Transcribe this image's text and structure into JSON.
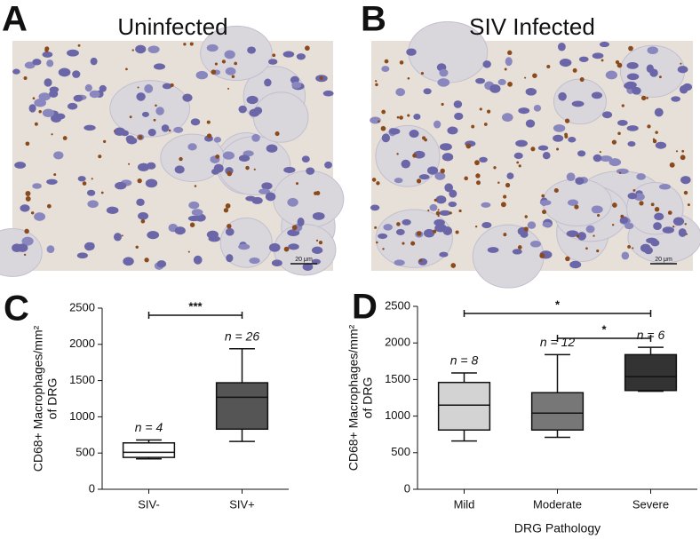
{
  "images": [
    {
      "letter": "A",
      "title": "Uninfected",
      "scale_bar": "20 μm"
    },
    {
      "letter": "B",
      "title": "SIV Infected",
      "scale_bar": "20 μm"
    }
  ],
  "chart_data": [
    {
      "type": "box",
      "letter": "C",
      "y_label": [
        "CD68+ Macrophages/mm²",
        "of DRG"
      ],
      "categories": [
        "SIV-",
        "SIV+"
      ],
      "boxes": [
        {
          "min": 420,
          "q1": 440,
          "median": 510,
          "q3": 640,
          "max": 680,
          "color": "#ffffff"
        },
        {
          "min": 660,
          "q1": 830,
          "median": 1270,
          "q3": 1470,
          "max": 1940,
          "color": "#555555"
        }
      ],
      "n_labels": [
        "n = 4",
        "n = 26"
      ],
      "significance": [
        {
          "between": [
            "SIV-",
            "SIV+"
          ],
          "label": "***"
        }
      ],
      "ylim": [
        0,
        2500
      ],
      "yticks": [
        0,
        500,
        1000,
        1500,
        2000,
        2500
      ]
    },
    {
      "type": "box",
      "letter": "D",
      "y_label": [
        "CD68+ Macrophages/mm²",
        "of DRG"
      ],
      "x_label": "DRG Pathology",
      "categories": [
        "Mild",
        "Moderate",
        "Severe"
      ],
      "boxes": [
        {
          "min": 660,
          "q1": 810,
          "median": 1150,
          "q3": 1460,
          "max": 1590,
          "color": "#d3d3d3"
        },
        {
          "min": 710,
          "q1": 810,
          "median": 1040,
          "q3": 1320,
          "max": 1840,
          "color": "#777777"
        },
        {
          "min": 1340,
          "q1": 1350,
          "median": 1540,
          "q3": 1840,
          "max": 1940,
          "color": "#333333"
        }
      ],
      "n_labels": [
        "n = 8",
        "n = 12",
        "n = 6"
      ],
      "significance": [
        {
          "between": [
            "Mild",
            "Severe"
          ],
          "label": "*"
        },
        {
          "between": [
            "Moderate",
            "Severe"
          ],
          "label": "*"
        }
      ],
      "ylim": [
        0,
        2500
      ],
      "yticks": [
        0,
        500,
        1000,
        1500,
        2000,
        2500
      ]
    }
  ]
}
